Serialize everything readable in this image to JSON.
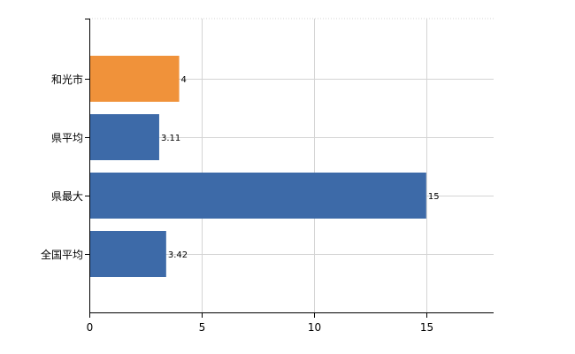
{
  "chart_data": {
    "type": "bar",
    "orientation": "horizontal",
    "categories": [
      "和光市",
      "県平均",
      "県最大",
      "全国平均"
    ],
    "values": [
      4,
      3.11,
      15,
      3.42
    ],
    "data_labels": [
      "4",
      "3.11",
      "15",
      "3.42"
    ],
    "bar_colors": [
      "#f0923a",
      "#3d6aa8",
      "#3d6aa8",
      "#3d6aa8"
    ],
    "xlim": [
      0,
      18
    ],
    "xticks": [
      0,
      5,
      10,
      15
    ],
    "xtick_labels": [
      "0",
      "5",
      "10",
      "15"
    ],
    "grid": true,
    "legend": false,
    "title": "",
    "xlabel": "",
    "ylabel": ""
  }
}
